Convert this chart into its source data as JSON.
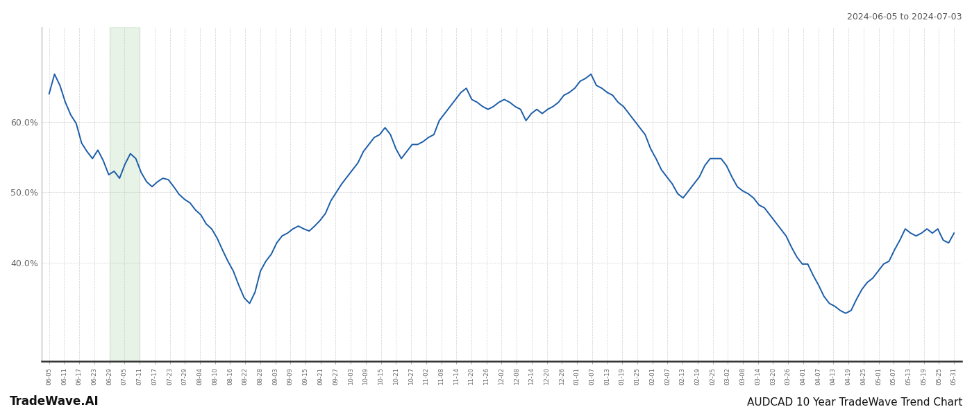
{
  "title_top_right": "2024-06-05 to 2024-07-03",
  "title_bottom_right": "AUDCAD 10 Year TradeWave Trend Chart",
  "title_bottom_left": "TradeWave.AI",
  "line_color": "#1a5ca8",
  "line_width": 1.4,
  "highlight_color": "#c8e6c9",
  "highlight_alpha": 0.45,
  "background_color": "#ffffff",
  "grid_color": "#bbbbbb",
  "grid_alpha": 0.6,
  "yticks": [
    0.4,
    0.5,
    0.6
  ],
  "ylim": [
    0.26,
    0.735
  ],
  "xtick_labels": [
    "06-05",
    "06-11",
    "06-17",
    "06-23",
    "06-29",
    "07-05",
    "07-11",
    "07-17",
    "07-23",
    "07-29",
    "08-04",
    "08-10",
    "08-16",
    "08-22",
    "08-28",
    "09-03",
    "09-09",
    "09-15",
    "09-21",
    "09-27",
    "10-03",
    "10-09",
    "10-15",
    "10-21",
    "10-27",
    "11-02",
    "11-08",
    "11-14",
    "11-20",
    "11-26",
    "12-02",
    "12-08",
    "12-14",
    "12-20",
    "12-26",
    "01-01",
    "01-07",
    "01-13",
    "01-19",
    "01-25",
    "02-01",
    "02-07",
    "02-13",
    "02-19",
    "02-25",
    "03-02",
    "03-08",
    "03-14",
    "03-20",
    "03-26",
    "04-01",
    "04-07",
    "04-13",
    "04-19",
    "04-25",
    "05-01",
    "05-07",
    "05-13",
    "05-19",
    "05-25",
    "05-31"
  ],
  "highlight_start_label": "06-29",
  "highlight_end_label": "07-11",
  "y_values": [
    0.64,
    0.668,
    0.652,
    0.628,
    0.61,
    0.598,
    0.57,
    0.558,
    0.548,
    0.56,
    0.545,
    0.525,
    0.53,
    0.52,
    0.54,
    0.555,
    0.548,
    0.528,
    0.515,
    0.508,
    0.515,
    0.52,
    0.518,
    0.508,
    0.497,
    0.49,
    0.485,
    0.475,
    0.468,
    0.455,
    0.448,
    0.435,
    0.418,
    0.402,
    0.388,
    0.368,
    0.35,
    0.342,
    0.358,
    0.388,
    0.402,
    0.412,
    0.428,
    0.438,
    0.442,
    0.448,
    0.452,
    0.448,
    0.445,
    0.452,
    0.46,
    0.47,
    0.488,
    0.5,
    0.512,
    0.522,
    0.532,
    0.542,
    0.558,
    0.568,
    0.578,
    0.582,
    0.592,
    0.582,
    0.562,
    0.548,
    0.558,
    0.568,
    0.568,
    0.572,
    0.578,
    0.582,
    0.602,
    0.612,
    0.622,
    0.632,
    0.642,
    0.648,
    0.632,
    0.628,
    0.622,
    0.618,
    0.622,
    0.628,
    0.632,
    0.628,
    0.622,
    0.618,
    0.602,
    0.612,
    0.618,
    0.612,
    0.618,
    0.622,
    0.628,
    0.638,
    0.642,
    0.648,
    0.658,
    0.662,
    0.668,
    0.652,
    0.648,
    0.642,
    0.638,
    0.628,
    0.622,
    0.612,
    0.602,
    0.592,
    0.582,
    0.562,
    0.548,
    0.532,
    0.522,
    0.512,
    0.498,
    0.492,
    0.502,
    0.512,
    0.522,
    0.538,
    0.548,
    0.548,
    0.548,
    0.538,
    0.522,
    0.508,
    0.502,
    0.498,
    0.492,
    0.482,
    0.478,
    0.468,
    0.458,
    0.448,
    0.438,
    0.422,
    0.408,
    0.398,
    0.398,
    0.382,
    0.368,
    0.352,
    0.342,
    0.338,
    0.332,
    0.328,
    0.332,
    0.348,
    0.362,
    0.372,
    0.378,
    0.388,
    0.398,
    0.402,
    0.418,
    0.432,
    0.448,
    0.442,
    0.438,
    0.442,
    0.448,
    0.442,
    0.448,
    0.432,
    0.428,
    0.442
  ]
}
